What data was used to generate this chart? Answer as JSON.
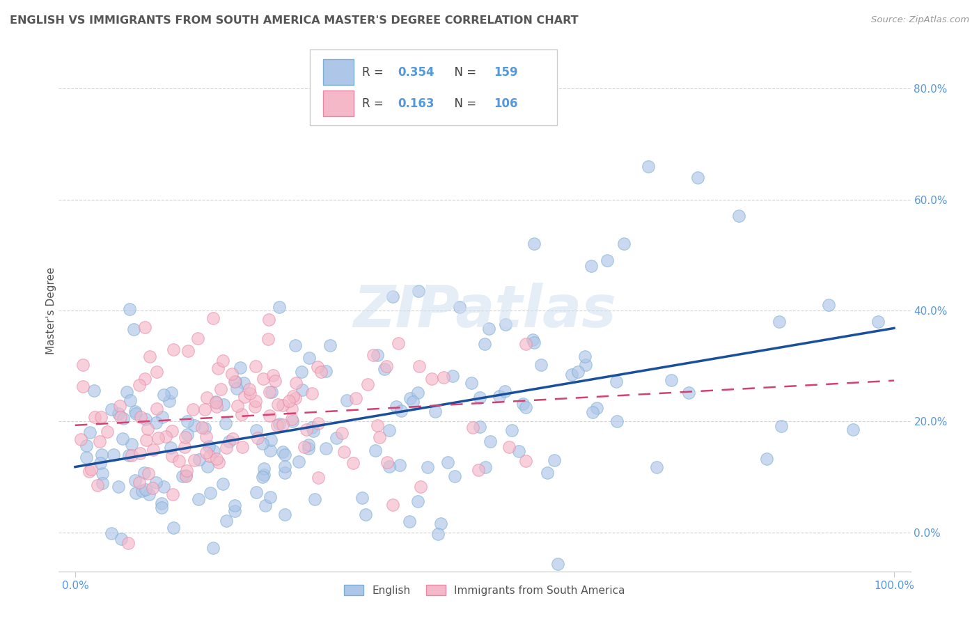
{
  "title": "ENGLISH VS IMMIGRANTS FROM SOUTH AMERICA MASTER'S DEGREE CORRELATION CHART",
  "source": "Source: ZipAtlas.com",
  "ylabel": "Master's Degree",
  "english_R": 0.354,
  "english_N": 159,
  "immigrant_R": 0.163,
  "immigrant_N": 106,
  "english_color": "#aec6e8",
  "english_edge_color": "#7aafd4",
  "immigrant_color": "#f4b8c8",
  "immigrant_edge_color": "#e888a8",
  "english_line_color": "#1a4f9c",
  "immigrant_line_color": "#d44070",
  "legend_label_english": "English",
  "legend_label_immigrant": "Immigrants from South America",
  "watermark": "ZIPatlas",
  "background_color": "#ffffff",
  "grid_color": "#c8c8c8",
  "title_color": "#555555",
  "axis_tick_color": "#5599dd",
  "ylabel_color": "#555555",
  "xlim": [
    -0.02,
    1.02
  ],
  "ylim": [
    -0.07,
    0.87
  ],
  "ytick_values": [
    0.0,
    0.2,
    0.4,
    0.6,
    0.8
  ],
  "xtick_values": [
    0.0,
    1.0
  ],
  "xtick_labels": [
    "0.0%",
    "100.0%"
  ],
  "ytick_labels": [
    "0.0%",
    "20.0%",
    "40.0%",
    "60.0%",
    "80.0%"
  ]
}
